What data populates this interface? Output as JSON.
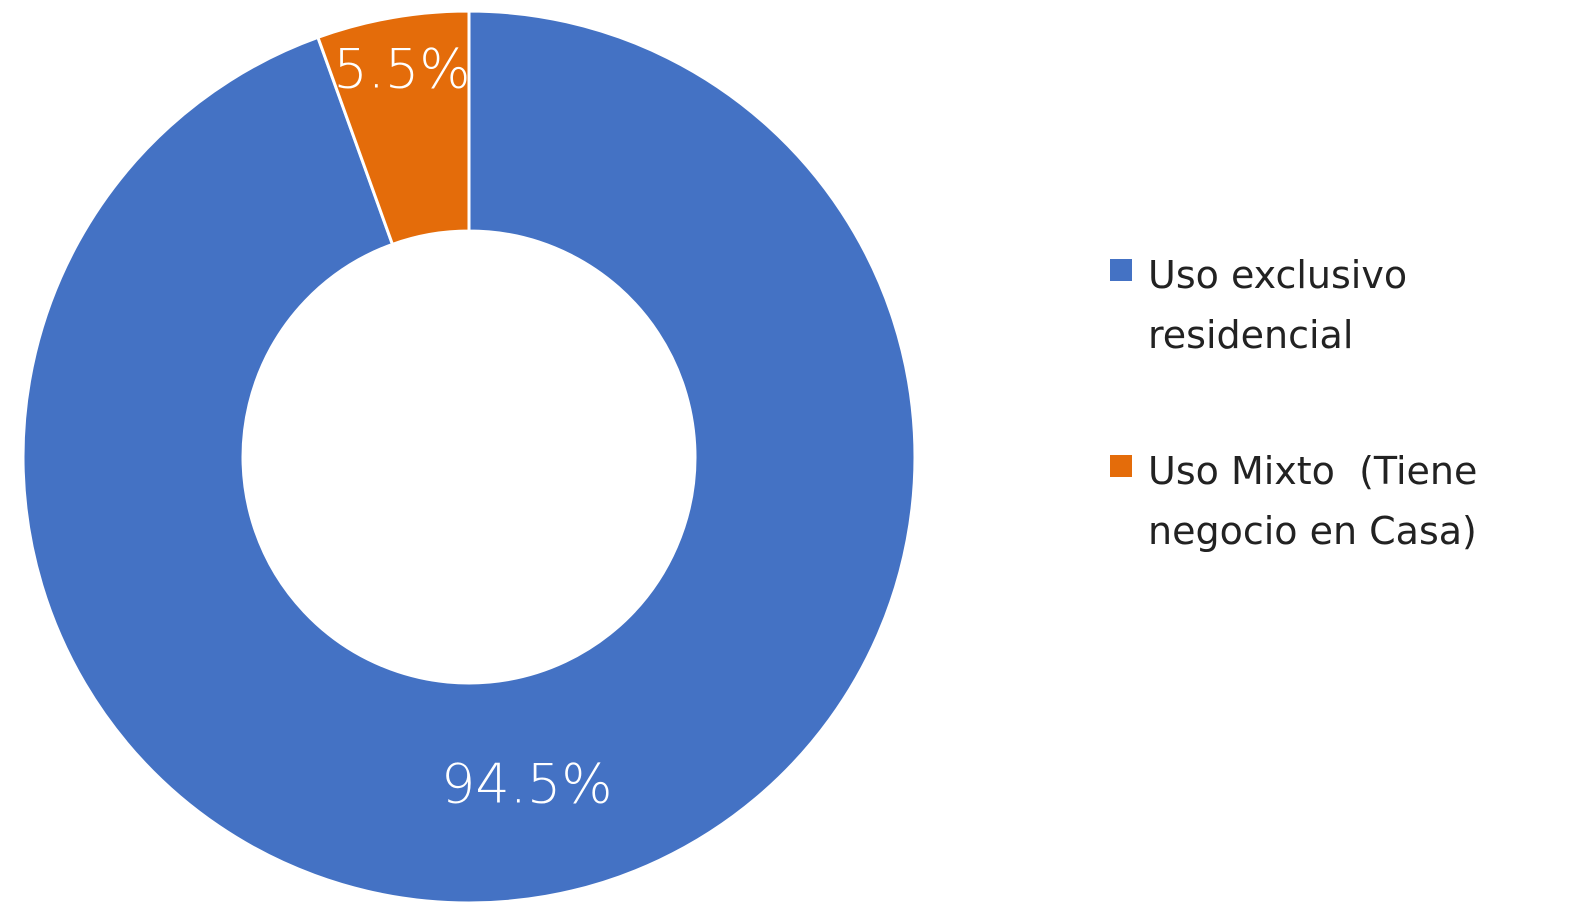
{
  "chart_data": {
    "type": "donut",
    "categories": [
      "Uso exclusivo residencial",
      "Uso Mixto  (Tiene negocio en Casa)"
    ],
    "series": [
      {
        "values": [
          94.5,
          5.5
        ],
        "value_labels": [
          "94.5%",
          "5.5%"
        ],
        "colors": [
          "#4472c4",
          "#e46c0a"
        ]
      }
    ],
    "legend": "right"
  }
}
